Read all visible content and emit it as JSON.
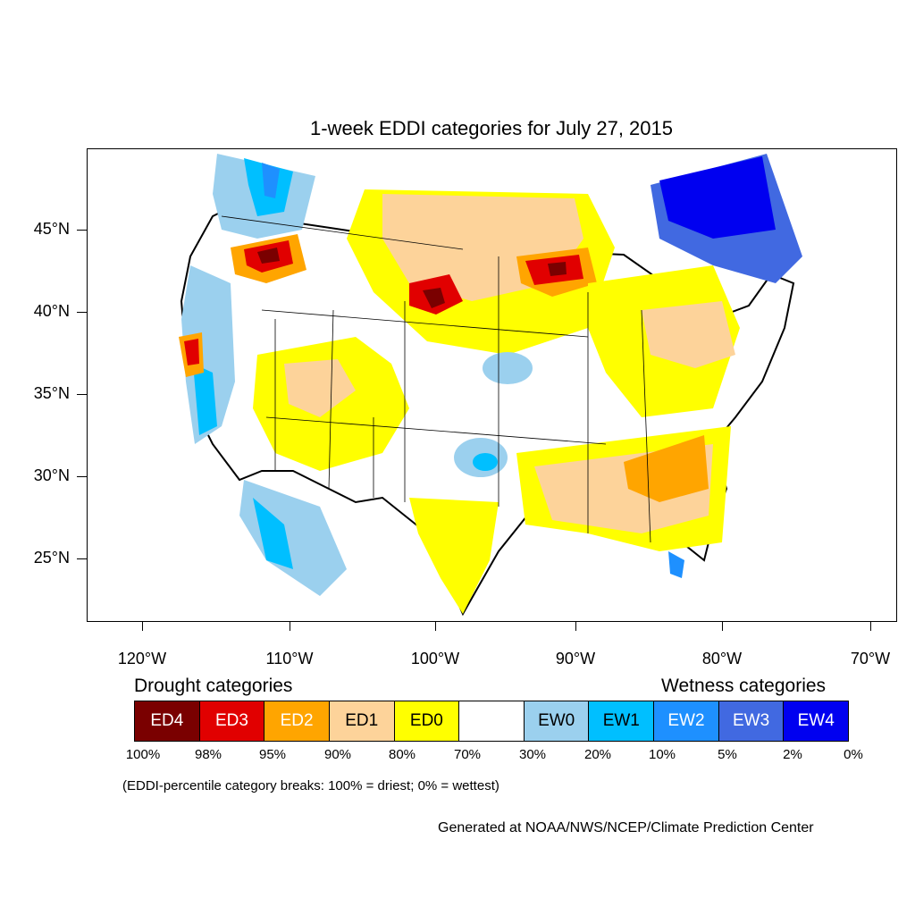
{
  "title": "1-week EDDI categories for July 27, 2015",
  "lat_labels": [
    "45°N",
    "40°N",
    "35°N",
    "30°N",
    "25°N"
  ],
  "lon_labels": [
    "120°W",
    "110°W",
    "100°W",
    "90°W",
    "80°W",
    "70°W"
  ],
  "legend": {
    "drought_heading": "Drought categories",
    "wetness_heading": "Wetness categories",
    "categories": [
      {
        "label": "ED4",
        "color": "#7a0000",
        "text_color": "#ffffff"
      },
      {
        "label": "ED3",
        "color": "#e10000",
        "text_color": "#ffffff"
      },
      {
        "label": "ED2",
        "color": "#ffa500",
        "text_color": "#ffffff"
      },
      {
        "label": "ED1",
        "color": "#fdd39a",
        "text_color": "#000000"
      },
      {
        "label": "ED0",
        "color": "#ffff00",
        "text_color": "#000000"
      },
      {
        "label": "",
        "color": "#ffffff",
        "text_color": "#000000"
      },
      {
        "label": "EW0",
        "color": "#9bd0ee",
        "text_color": "#000000"
      },
      {
        "label": "EW1",
        "color": "#00bfff",
        "text_color": "#000000"
      },
      {
        "label": "EW2",
        "color": "#1e90ff",
        "text_color": "#ffffff"
      },
      {
        "label": "EW3",
        "color": "#4169e1",
        "text_color": "#ffffff"
      },
      {
        "label": "EW4",
        "color": "#0000f0",
        "text_color": "#ffffff"
      }
    ],
    "breaks": [
      "100%",
      "98%",
      "95%",
      "90%",
      "80%",
      "70%",
      "30%",
      "20%",
      "10%",
      "5%",
      "2%",
      "0%"
    ]
  },
  "note": "(EDDI-percentile category breaks: 100% = driest; 0% = wettest)",
  "credit": "Generated at NOAA/NWS/NCEP/Climate Prediction Center"
}
